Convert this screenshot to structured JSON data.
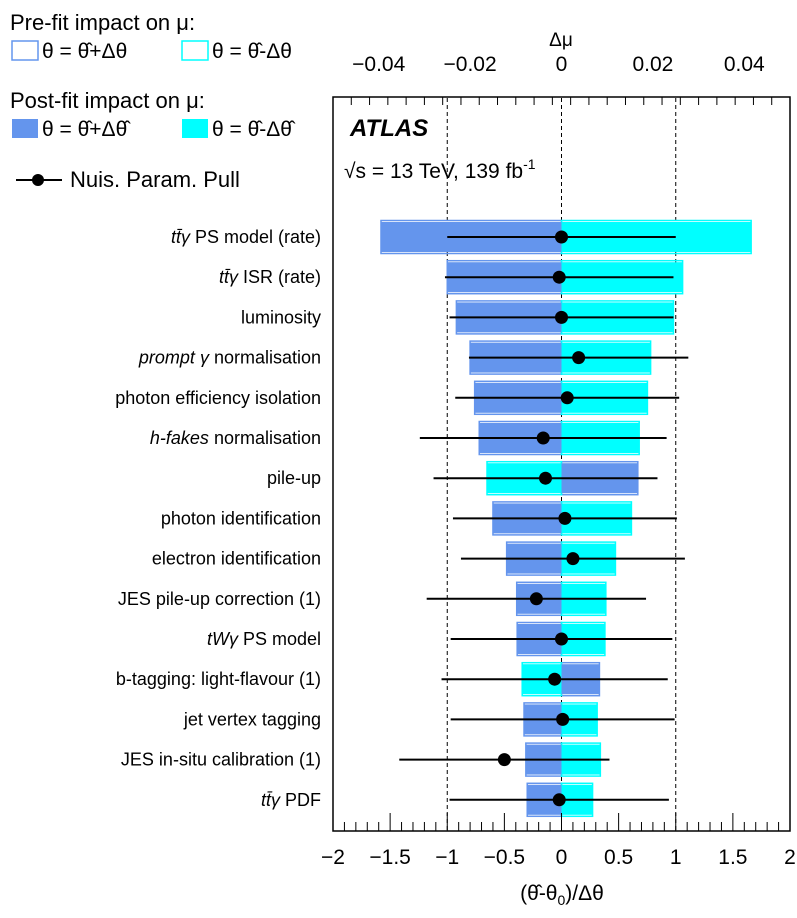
{
  "chart_data": {
    "type": "bar",
    "experiment_label": "ATLAS",
    "energy_label": "√s = 13 TeV, 139 fb",
    "energy_label_superscript": "-1",
    "xlabel_bottom": "(θ̂-θ0)/Δθ",
    "xlabel_top": "Δμ",
    "xlim_bottom": [
      -2,
      2
    ],
    "xlim_top": [
      -0.05,
      0.05
    ],
    "ticks_bottom": [
      "−2",
      "−1.5",
      "−1",
      "−0.5",
      "0",
      "0.5",
      "1",
      "1.5",
      "2"
    ],
    "ticks_top": [
      "−0.04",
      "−0.02",
      "0",
      "0.02",
      "0.04"
    ],
    "legend": {
      "prefit_title": "Pre-fit impact on μ:",
      "prefit_up": "θ = θ̂+Δθ",
      "prefit_down": "θ = θ̂-Δθ",
      "postfit_title": "Post-fit impact on μ:",
      "postfit_up": "θ = θ̂+Δθ̂",
      "postfit_down": "θ = θ̂-Δθ̂",
      "pull": "Nuis. Param. Pull"
    },
    "colors": {
      "up": "#6495ED",
      "down": "#00FFFF",
      "pull": "#000000"
    },
    "nuisance_parameters": [
      {
        "label_parts": [
          {
            "t": "tt̄γ",
            "i": true
          },
          {
            "t": " PS model (rate)",
            "i": false
          }
        ],
        "up_impact": -0.0395,
        "down_impact": 0.0415,
        "prefit_up": -0.0395,
        "prefit_down": 0.0415,
        "pull": 0.0,
        "pull_err": 1.0
      },
      {
        "label_parts": [
          {
            "t": "tt̄γ",
            "i": true
          },
          {
            "t": " ISR (rate)",
            "i": false
          }
        ],
        "up_impact": -0.025,
        "down_impact": 0.0265,
        "prefit_up": -0.025,
        "prefit_down": 0.0265,
        "pull": -0.02,
        "pull_err": 1.0
      },
      {
        "label_parts": [
          {
            "t": "luminosity",
            "i": false
          }
        ],
        "up_impact": -0.023,
        "down_impact": 0.0245,
        "prefit_up": -0.023,
        "prefit_down": 0.0245,
        "pull": 0.0,
        "pull_err": 0.98
      },
      {
        "label_parts": [
          {
            "t": "prompt",
            "i": true
          },
          {
            "t": " ",
            "i": false
          },
          {
            "t": "γ",
            "i": true
          },
          {
            "t": " normalisation",
            "i": false
          }
        ],
        "up_impact": -0.02,
        "down_impact": 0.0195,
        "prefit_up": -0.02,
        "prefit_down": 0.0195,
        "pull": 0.15,
        "pull_err": 0.96
      },
      {
        "label_parts": [
          {
            "t": "photon efficiency isolation",
            "i": false
          }
        ],
        "up_impact": -0.019,
        "down_impact": 0.0188,
        "prefit_up": -0.019,
        "prefit_down": 0.0188,
        "pull": 0.05,
        "pull_err": 0.98
      },
      {
        "label_parts": [
          {
            "t": "h-fakes",
            "i": true
          },
          {
            "t": " normalisation",
            "i": false
          }
        ],
        "up_impact": -0.018,
        "down_impact": 0.017,
        "prefit_up": -0.018,
        "prefit_down": 0.017,
        "pull": -0.16,
        "pull_err": 1.08
      },
      {
        "label_parts": [
          {
            "t": "pile-up",
            "i": false
          }
        ],
        "up_impact": 0.0167,
        "down_impact": -0.0163,
        "prefit_up": 0.0167,
        "prefit_down": -0.0163,
        "pull": -0.14,
        "pull_err": 0.98
      },
      {
        "label_parts": [
          {
            "t": "photon identification",
            "i": false
          }
        ],
        "up_impact": -0.015,
        "down_impact": 0.0153,
        "prefit_up": -0.015,
        "prefit_down": 0.0153,
        "pull": 0.03,
        "pull_err": 0.98
      },
      {
        "label_parts": [
          {
            "t": "electron identification",
            "i": false
          }
        ],
        "up_impact": -0.012,
        "down_impact": 0.0118,
        "prefit_up": -0.012,
        "prefit_down": 0.0118,
        "pull": 0.1,
        "pull_err": 0.98
      },
      {
        "label_parts": [
          {
            "t": "JES pile-up correction (1)",
            "i": false
          }
        ],
        "up_impact": -0.0098,
        "down_impact": 0.0097,
        "prefit_up": -0.0098,
        "prefit_down": 0.0097,
        "pull": -0.22,
        "pull_err": 0.96
      },
      {
        "label_parts": [
          {
            "t": "tWγ",
            "i": true
          },
          {
            "t": " PS model",
            "i": false
          }
        ],
        "up_impact": -0.0097,
        "down_impact": 0.0095,
        "prefit_up": -0.0097,
        "prefit_down": 0.0095,
        "pull": 0.0,
        "pull_err": 0.97
      },
      {
        "label_parts": [
          {
            "t": "b-tagging: light-flavour (1)",
            "i": false
          }
        ],
        "up_impact": 0.0083,
        "down_impact": -0.0086,
        "prefit_up": 0.0083,
        "prefit_down": -0.0086,
        "pull": -0.06,
        "pull_err": 0.99
      },
      {
        "label_parts": [
          {
            "t": "jet vertex tagging",
            "i": false
          }
        ],
        "up_impact": -0.0082,
        "down_impact": 0.0078,
        "prefit_up": -0.0082,
        "prefit_down": 0.0078,
        "pull": 0.01,
        "pull_err": 0.98
      },
      {
        "label_parts": [
          {
            "t": "JES in-situ calibration (1)",
            "i": false
          }
        ],
        "up_impact": -0.0078,
        "down_impact": 0.0085,
        "prefit_up": -0.0078,
        "prefit_down": 0.0085,
        "pull": -0.5,
        "pull_err": 0.92
      },
      {
        "label_parts": [
          {
            "t": "tt̄γ",
            "i": true
          },
          {
            "t": " PDF",
            "i": false
          }
        ],
        "up_impact": -0.0075,
        "down_impact": 0.0068,
        "prefit_up": -0.0075,
        "prefit_down": 0.0068,
        "pull": -0.02,
        "pull_err": 0.96
      }
    ]
  }
}
